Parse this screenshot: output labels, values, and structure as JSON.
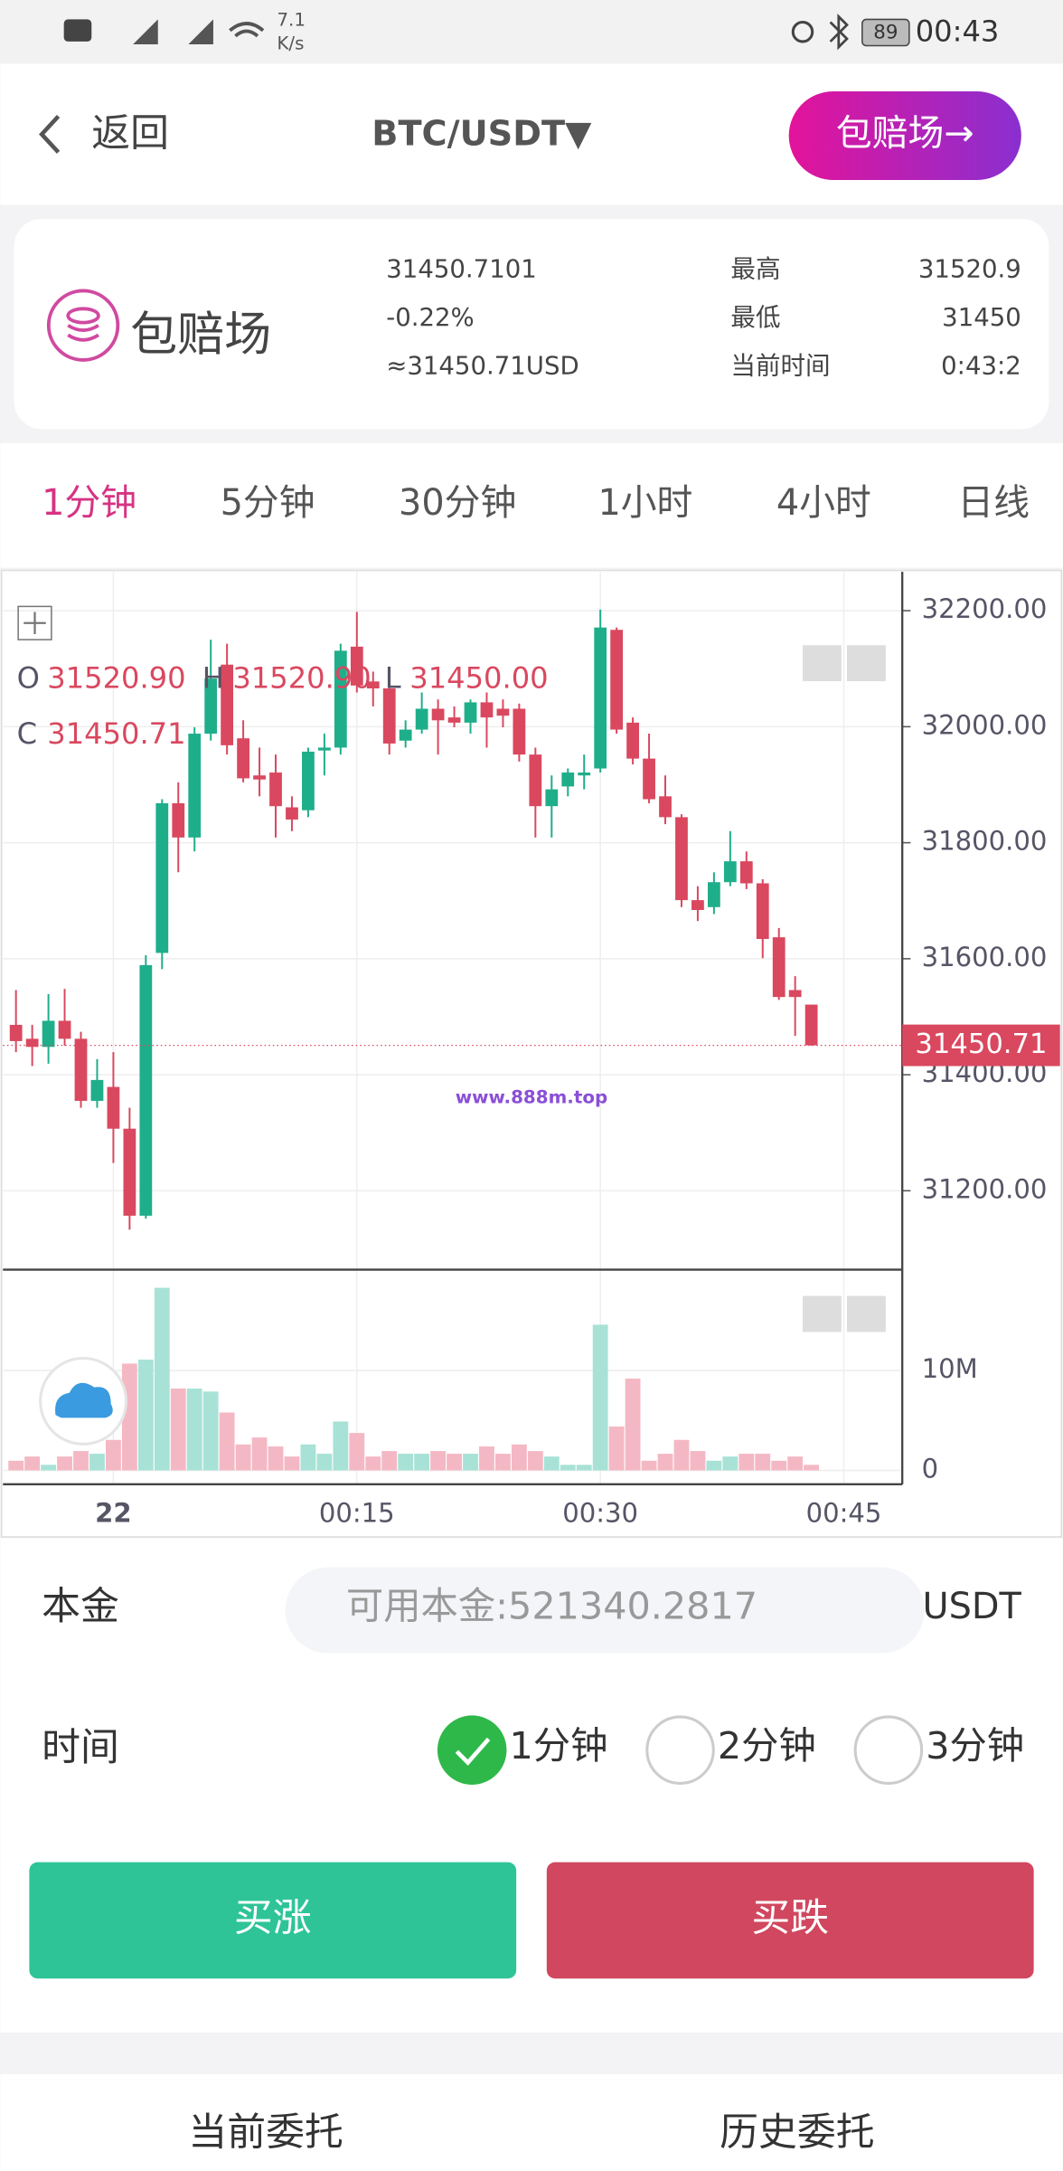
{
  "status_bar": {
    "speed": "7.1",
    "speed_unit": "K/s",
    "battery": "89",
    "time": "00:43"
  },
  "header": {
    "back": "返回",
    "title": "BTC/USDT▼",
    "action": "包赔场→"
  },
  "ticker": {
    "brand": "包赔场",
    "price": "31450.7101",
    "change": "-0.22%",
    "usd": "≈31450.71USD",
    "stats": [
      {
        "label": "最高",
        "value": "31520.9"
      },
      {
        "label": "最低",
        "value": "31450"
      },
      {
        "label": "当前时间",
        "value": "0:43:2"
      }
    ]
  },
  "tabs": [
    "1分钟",
    "5分钟",
    "30分钟",
    "1小时",
    "4小时",
    "日线"
  ],
  "chart_data": {
    "type": "candlestick",
    "ohlc": [
      {
        "label": "O",
        "value": "31520.90"
      },
      {
        "label": "H",
        "value": "31520.90"
      },
      {
        "label": "L",
        "value": "31450.00"
      },
      {
        "label": "C",
        "value": "31450.71"
      }
    ],
    "watermark": "www.888m.top",
    "last_price_label": "31450.71",
    "x": [
      -6,
      -5,
      -4,
      -3,
      -2,
      -1,
      0,
      1,
      2,
      3,
      4,
      5,
      6,
      7,
      8,
      9,
      10,
      11,
      12,
      13,
      14,
      15,
      16,
      17,
      18,
      19,
      20,
      21,
      22,
      23,
      24,
      25,
      26,
      27,
      28,
      29,
      30,
      31,
      32,
      33,
      34,
      35,
      36,
      37,
      38,
      39,
      40,
      41,
      42,
      43
    ],
    "xlim": [
      -6.8,
      48.6
    ],
    "xticks": [
      {
        "value": 0,
        "label": "22"
      },
      {
        "value": 15,
        "label": "00:15"
      },
      {
        "value": 30,
        "label": "00:30"
      },
      {
        "value": 45,
        "label": "00:45"
      }
    ],
    "open": [
      31486,
      31462,
      31448,
      31493,
      31462,
      31355,
      31379,
      31307,
      31157,
      31610,
      31868,
      31809,
      31988,
      32107,
      31980,
      31916,
      31921,
      31861,
      31856,
      31959,
      31964,
      32138,
      32078,
      32066,
      31976,
      31995,
      32031,
      32016,
      32007,
      32042,
      32031,
      32031,
      31952,
      31863,
      31897,
      31916,
      31928,
      32167,
      32007,
      31945,
      31880,
      31844,
      31701,
      31689,
      31732,
      31768,
      31730,
      31637,
      31546,
      31520.9
    ],
    "high": [
      31546,
      31486,
      31539,
      31548,
      31474,
      31427,
      31439,
      31343,
      31606,
      31875,
      31904,
      31999,
      32150,
      32143,
      32011,
      31964,
      31952,
      31880,
      31964,
      31988,
      32143,
      32198,
      32095,
      32083,
      32011,
      32059,
      32047,
      32035,
      32047,
      32059,
      32047,
      32040,
      31964,
      31916,
      31928,
      31952,
      32202,
      32171,
      32016,
      31988,
      31916,
      31849,
      31725,
      31749,
      31820,
      31785,
      31737,
      31653,
      31570,
      31520.9
    ],
    "low": [
      31439,
      31415,
      31419,
      31450,
      31343,
      31343,
      31248,
      31133,
      31152,
      31582,
      31749,
      31785,
      31976,
      31952,
      31904,
      31880,
      31809,
      31820,
      31844,
      31916,
      31952,
      32059,
      32035,
      31952,
      31964,
      31988,
      31952,
      31999,
      31988,
      31964,
      31999,
      31940,
      31809,
      31809,
      31880,
      31892,
      31921,
      31988,
      31935,
      31868,
      31832,
      31689,
      31665,
      31677,
      31725,
      31720,
      31601,
      31529,
      31467,
      31450
    ],
    "close": [
      31458,
      31448,
      31493,
      31462,
      31355,
      31391,
      31307,
      31157,
      31589,
      31868,
      31809,
      31988,
      32083,
      31968,
      31911,
      31909,
      31863,
      31840,
      31957,
      31964,
      32131,
      32071,
      32066,
      31971,
      31995,
      32031,
      32011,
      32007,
      32042,
      32016,
      32019,
      31952,
      31863,
      31892,
      31921,
      31921,
      32171,
      31995,
      31945,
      31875,
      31844,
      31701,
      31684,
      31732,
      31768,
      31730,
      31634,
      31534,
      31534,
      31450.71
    ],
    "ylim": [
      31064,
      32267
    ],
    "yticks": [
      {
        "value": 31200,
        "label": "31200.00"
      },
      {
        "value": 31400,
        "label": "31400.00"
      },
      {
        "value": 31600,
        "label": "31600.00"
      },
      {
        "value": 31800,
        "label": "31800.00"
      },
      {
        "value": 32000,
        "label": "32000.00"
      },
      {
        "value": 32200,
        "label": "32200.00"
      }
    ],
    "volumes": [
      970000,
      1390000,
      560000,
      1390000,
      1940000,
      1670000,
      3060000,
      10700000,
      11100000,
      18300000,
      8200000,
      8200000,
      7900000,
      5800000,
      2600000,
      3300000,
      2400000,
      1390000,
      2600000,
      1670000,
      4900000,
      3750000,
      1390000,
      1940000,
      1670000,
      1670000,
      1940000,
      1670000,
      1670000,
      2400000,
      1670000,
      2600000,
      1940000,
      1390000,
      560000,
      560000,
      14600000,
      4400000,
      9200000,
      970000,
      1670000,
      3060000,
      1940000,
      970000,
      1390000,
      1670000,
      1670000,
      970000,
      1390000,
      560000
    ],
    "volume_ylim": [
      0,
      19700000
    ],
    "volume_yticks": [
      0,
      {
        "value": 10000000,
        "label": "10M"
      }
    ],
    "up_color": "#1fae8a",
    "down_color": "#d9485f",
    "volume_up_color": "#a8e2d6",
    "volume_down_color": "#f4b8c4",
    "grid": true
  },
  "form": {
    "principal_label": "本金",
    "principal_placeholder": "可用本金:521340.2817",
    "unit": "USDT",
    "time_label": "时间",
    "time_options": [
      "1分钟",
      "2分钟",
      "3分钟"
    ],
    "buy_up": "买涨",
    "buy_down": "买跌"
  },
  "bottom_tabs": [
    "当前委托",
    "历史委托"
  ]
}
